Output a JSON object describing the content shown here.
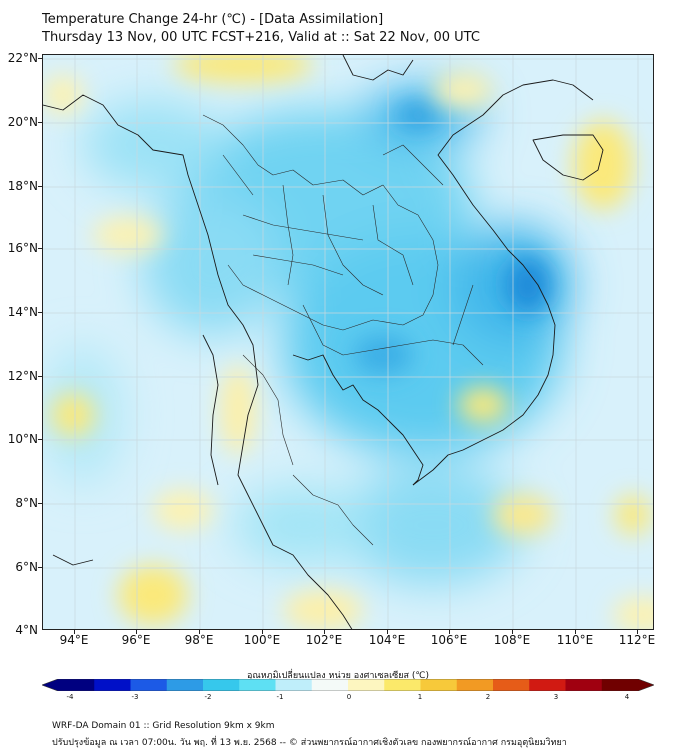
{
  "title_line1": "Temperature Change 24-hr (℃) - [Data Assimilation]",
  "title_line2": "Thursday 13 Nov, 00 UTC FCST+216, Valid at :: Sat 22 Nov, 00 UTC",
  "lat_labels": [
    "22°N",
    "20°N",
    "18°N",
    "16°N",
    "14°N",
    "12°N",
    "10°N",
    "8°N",
    "6°N",
    "4°N"
  ],
  "lon_labels": [
    "94°E",
    "96°E",
    "98°E",
    "100°E",
    "102°E",
    "104°E",
    "106°E",
    "108°E",
    "110°E",
    "112°E"
  ],
  "colorbar_label": "อุณหภูมิเปลี่ยนแปลง หน่วย องศาเซลเซียส (℃)",
  "colorbar_ticks": [
    "-4",
    "-3",
    "-2",
    "-1",
    "0",
    "1",
    "2",
    "3",
    "4"
  ],
  "colorbar_range": [
    -4,
    4
  ],
  "colorbar_colors": [
    "#000080",
    "#0010c8",
    "#1c5ae6",
    "#2d9be6",
    "#36c8ec",
    "#5ee0f3",
    "#bfeefa",
    "#f4faf8",
    "#fdf6c0",
    "#fbe96a",
    "#f7c93a",
    "#f29a23",
    "#e65c18",
    "#d11a12",
    "#a00010",
    "#700000"
  ],
  "footer_line1": "WRF-DA Domain 01 :: Grid Resolution 9km x 9km",
  "footer_line2": "ปรับปรุงข้อมูล ณ เวลา 07:00น. วัน พฤ. ที่ 13 พ.ย. 2568 -- © ส่วนพยากรณ์อากาศเชิงตัวเลข กองพยากรณ์อากาศ กรมอุตุนิยมวิทยา"
}
